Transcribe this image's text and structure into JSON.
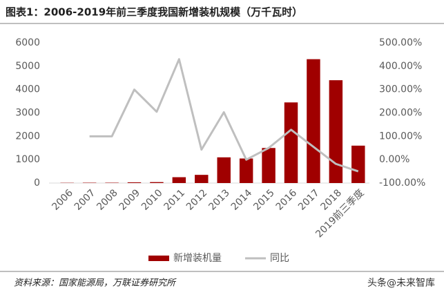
{
  "chart_data": {
    "type": "bar-line",
    "title": "图表1：2006-2019年前三季度我国新增装机规模（万千瓦时）",
    "source": "资料来源：国家能源局，万联证券研究所",
    "watermark": "头条@未来智库",
    "categories": [
      "2006",
      "2007",
      "2008",
      "2009",
      "2010",
      "2011",
      "2012",
      "2013",
      "2014",
      "2015",
      "2016",
      "2017",
      "2018",
      "2019前三季度"
    ],
    "series": [
      {
        "name": "新增装机量",
        "color": "#a00000",
        "values": [
          10,
          15,
          15,
          30,
          40,
          250,
          350,
          1100,
          1050,
          1500,
          3450,
          5300,
          4400,
          1600
        ]
      },
      {
        "name": "同比",
        "color": "#bfbfbf",
        "axis": "y2",
        "values": [
          null,
          100,
          100,
          300,
          205,
          430,
          43,
          203,
          0,
          50,
          128,
          55,
          -18,
          -50
        ]
      }
    ],
    "ylim": [
      0,
      6000
    ],
    "yticks": [
      0,
      1000,
      2000,
      3000,
      4000,
      5000,
      6000
    ],
    "y2lim": [
      -100,
      500
    ],
    "y2ticks": [
      {
        "value": -100,
        "label": "-100.00%"
      },
      {
        "value": 0,
        "label": "0.00%"
      },
      {
        "value": 100,
        "label": "100.00%"
      },
      {
        "value": 200,
        "label": "200.00%"
      },
      {
        "value": 300,
        "label": "300.00%"
      },
      {
        "value": 400,
        "label": "400.00%"
      },
      {
        "value": 500,
        "label": "500.00%"
      }
    ]
  }
}
